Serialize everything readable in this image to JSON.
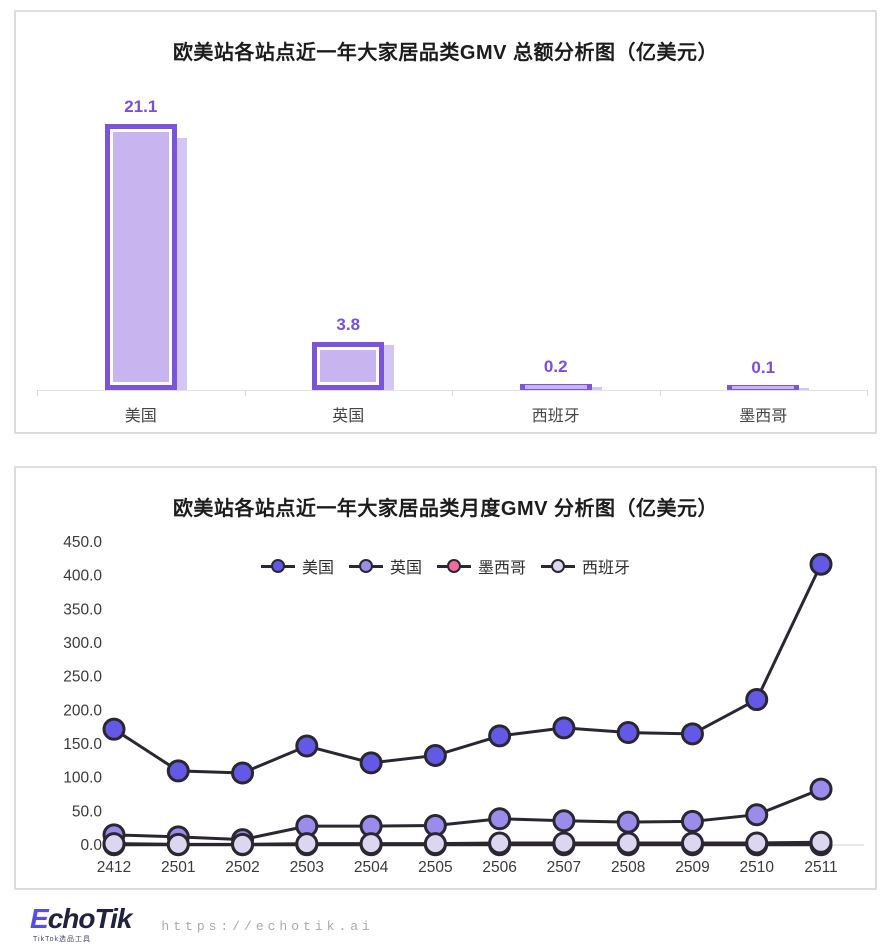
{
  "chart_data": [
    {
      "type": "bar",
      "title": "欧美站各站点近一年大家居品类GMV 总额分析图（亿美元）",
      "categories": [
        "美国",
        "英国",
        "西班牙",
        "墨西哥"
      ],
      "values": [
        21.1,
        3.8,
        0.2,
        0.1
      ],
      "value_labels": [
        "21.1",
        "3.8",
        "0.2",
        "0.1"
      ],
      "ylim": [
        0,
        22
      ],
      "grid": false,
      "colors": {
        "bar_fill": "#c8b5ef",
        "bar_border": "#7c54d9",
        "bar_shadow": "#cfc0f2",
        "value_label": "#7b4ed6",
        "axis": "#e3e3e3"
      }
    },
    {
      "type": "line",
      "title": "欧美站各站点近一年大家居品类月度GMV 分析图（亿美元）",
      "x": [
        "2412",
        "2501",
        "2502",
        "2503",
        "2504",
        "2505",
        "2506",
        "2507",
        "2508",
        "2509",
        "2510",
        "2511"
      ],
      "series": [
        {
          "name": "美国",
          "color": "#6459e7",
          "values": [
            172,
            110,
            107,
            147,
            122,
            133,
            162,
            174,
            167,
            165,
            216,
            417
          ]
        },
        {
          "name": "英国",
          "color": "#9b8ceb",
          "values": [
            15,
            12,
            8,
            28,
            28,
            29,
            39,
            36,
            34,
            35,
            45,
            83
          ]
        },
        {
          "name": "墨西哥",
          "color": "#ee6d9e",
          "values": [
            0.3,
            0.3,
            0.3,
            0.3,
            0.3,
            0.3,
            0.3,
            0.3,
            0.3,
            0.3,
            0.3,
            0.3
          ]
        },
        {
          "name": "西班牙",
          "color": "#dcd6f0",
          "values": [
            2,
            1,
            1,
            2,
            2,
            2,
            3,
            3,
            3,
            3,
            3,
            4
          ]
        }
      ],
      "yticks": [
        0,
        50,
        100,
        150,
        200,
        250,
        300,
        350,
        400,
        450
      ],
      "ytick_labels": [
        "0.0",
        "50.0",
        "100.0",
        "150.0",
        "200.0",
        "250.0",
        "300.0",
        "350.0",
        "400.0",
        "450.0"
      ],
      "ylim": [
        0,
        460
      ],
      "legend_position": "top-center",
      "grid": false,
      "line_color": "#2a2730"
    }
  ],
  "footer": {
    "logo_e": "E",
    "logo_rest": "choTik",
    "logo_subtext": "TikTok选品工具",
    "url": "https://echotik.ai"
  }
}
